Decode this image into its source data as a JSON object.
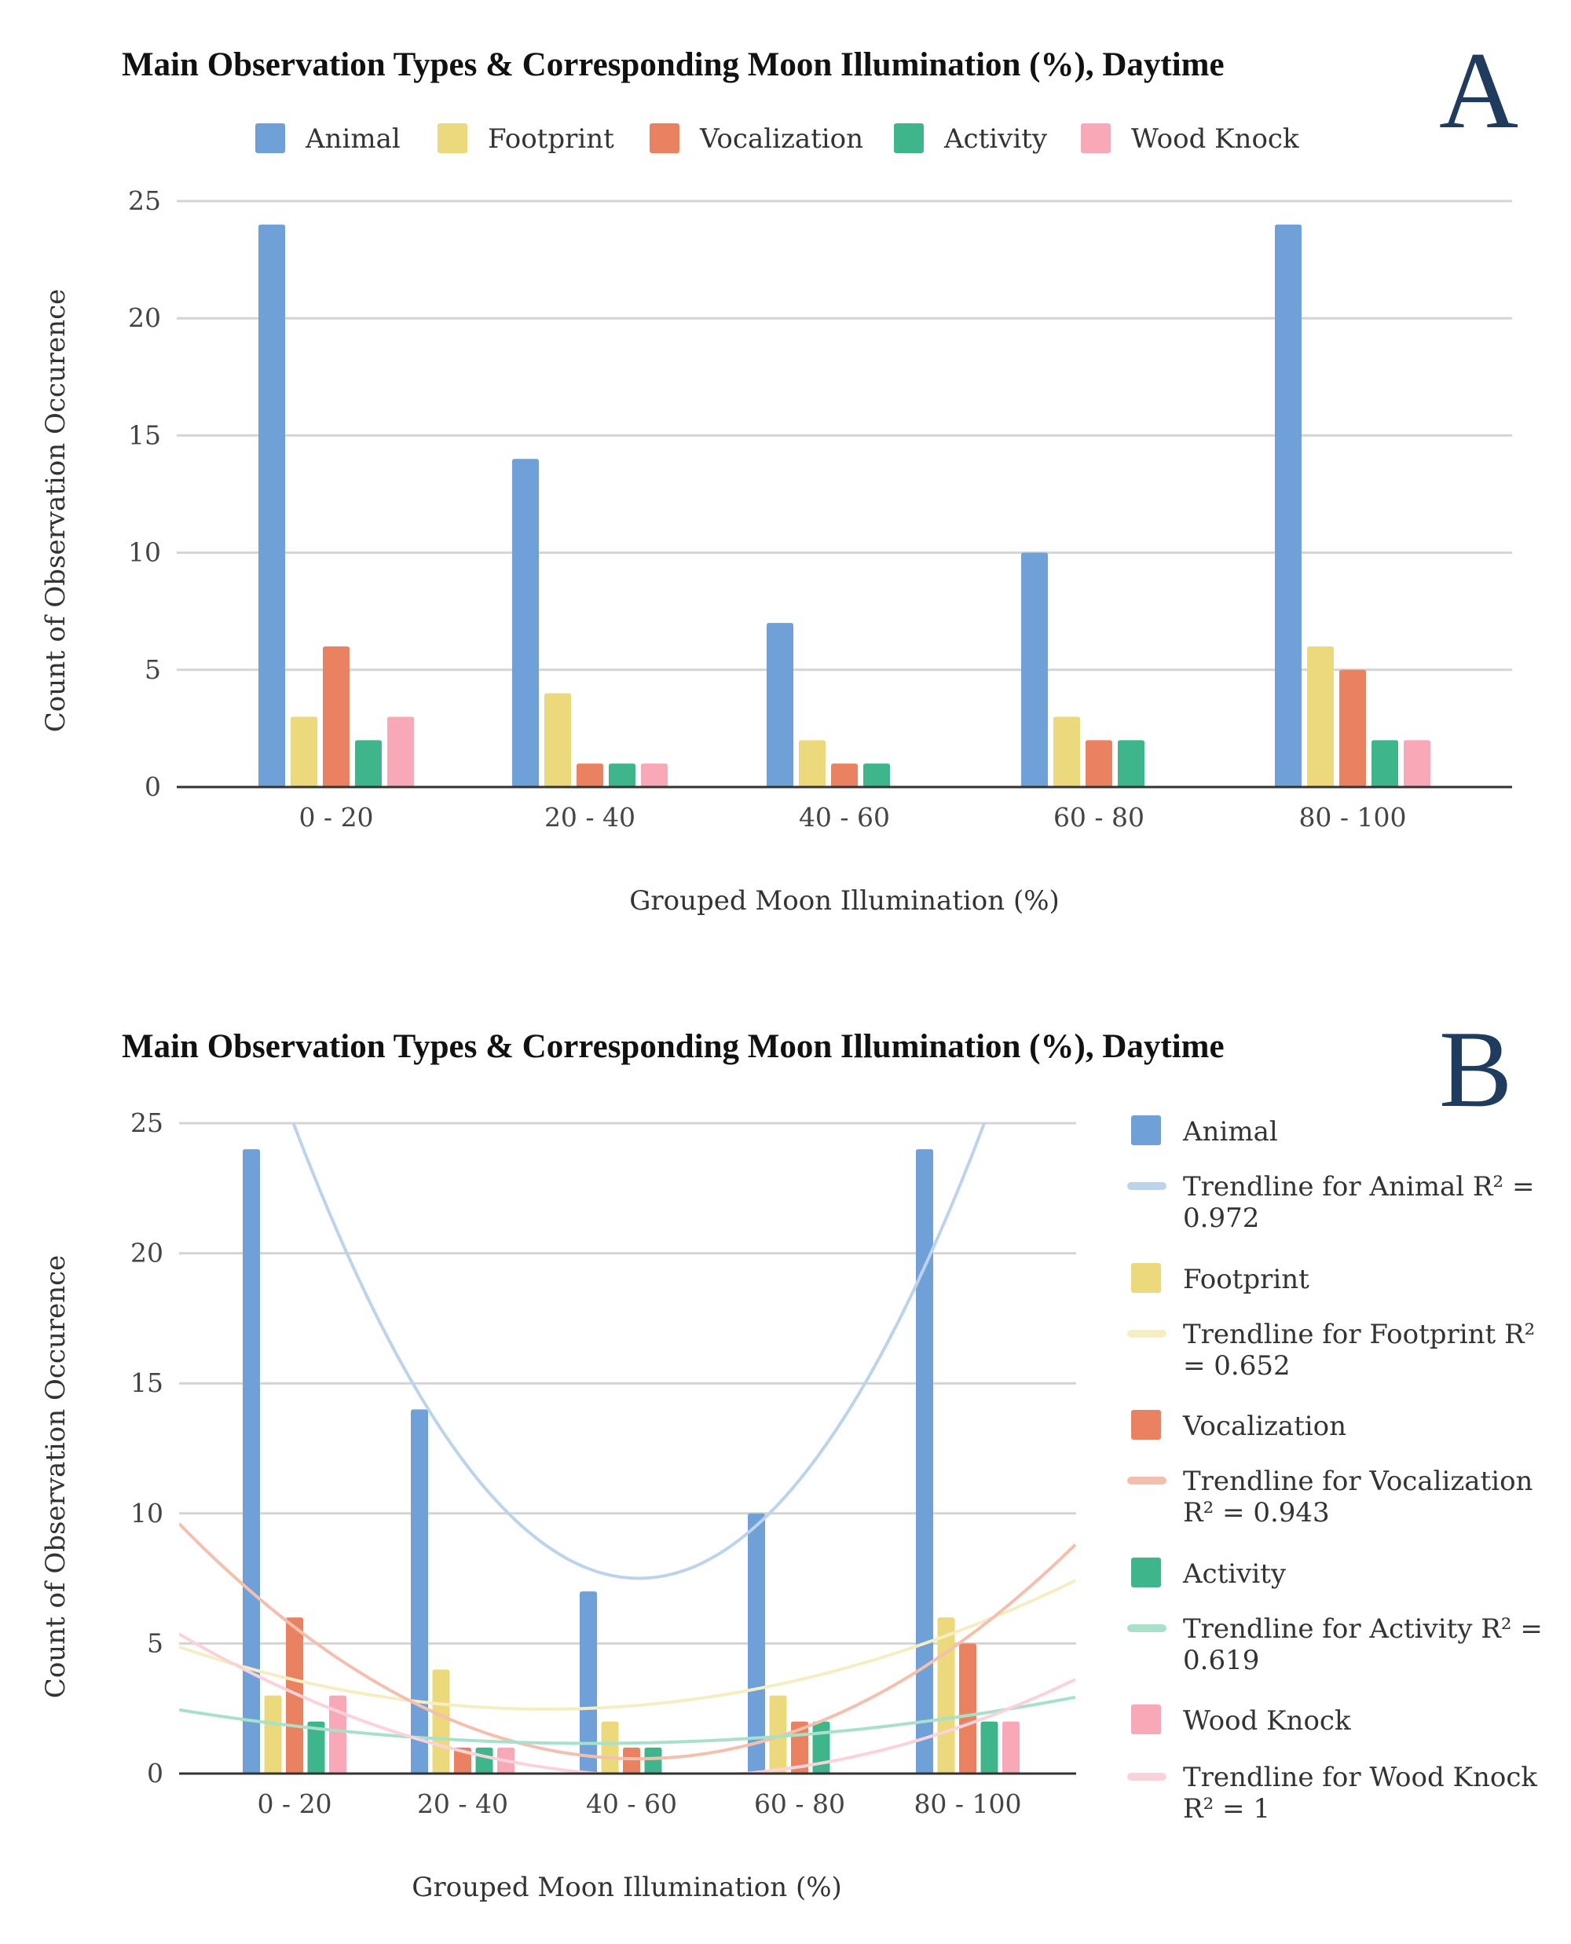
{
  "chart_data": [
    {
      "panel": "A",
      "type": "bar",
      "title": "Main Observation Types & Corresponding Moon Illumination (%), Daytime",
      "xlabel": "Grouped Moon Illumination (%)",
      "ylabel": "Count of Observation Occurence",
      "ylim": [
        0,
        25
      ],
      "yticks": [
        "0",
        "5",
        "10",
        "15",
        "20",
        "25"
      ],
      "categories": [
        "0 - 20",
        "20 - 40",
        "40 - 60",
        "60 - 80",
        "80 - 100"
      ],
      "legend_position": "top",
      "series": [
        {
          "name": "Animal",
          "color": "#6fa0d8",
          "values": [
            24,
            14,
            7,
            10,
            24
          ]
        },
        {
          "name": "Footprint",
          "color": "#ecd97c",
          "values": [
            3,
            4,
            2,
            3,
            6
          ]
        },
        {
          "name": "Vocalization",
          "color": "#ea8261",
          "values": [
            6,
            1,
            1,
            2,
            5
          ]
        },
        {
          "name": "Activity",
          "color": "#3fb58c",
          "values": [
            2,
            1,
            1,
            2,
            2
          ]
        },
        {
          "name": "Wood Knock",
          "color": "#f8a8b6",
          "values": [
            3,
            1,
            0,
            0,
            2
          ]
        }
      ]
    },
    {
      "panel": "B",
      "type": "bar",
      "title": "Main Observation Types & Corresponding Moon Illumination (%), Daytime",
      "xlabel": "Grouped Moon Illumination (%)",
      "ylabel": "Count of Observation Occurence",
      "ylim": [
        0,
        25
      ],
      "yticks": [
        "0",
        "5",
        "10",
        "15",
        "20",
        "25"
      ],
      "categories": [
        "0 - 20",
        "20 - 40",
        "40 - 60",
        "60 - 80",
        "80 - 100"
      ],
      "legend_position": "right",
      "series": [
        {
          "name": "Animal",
          "color": "#6fa0d8",
          "trend_color": "#bcd3ee",
          "values": [
            24,
            14,
            7,
            10,
            24
          ],
          "trendline": "Trendline for Animal R² = 0.972"
        },
        {
          "name": "Footprint",
          "color": "#ecd97c",
          "trend_color": "#f6eec2",
          "values": [
            3,
            4,
            2,
            3,
            6
          ],
          "trendline": "Trendline for Footprint R² = 0.652"
        },
        {
          "name": "Vocalization",
          "color": "#ea8261",
          "trend_color": "#f4c0ad",
          "values": [
            6,
            1,
            1,
            2,
            5
          ],
          "trendline": "Trendline for Vocalization R² = 0.943"
        },
        {
          "name": "Activity",
          "color": "#3fb58c",
          "trend_color": "#a8e0c9",
          "values": [
            2,
            1,
            1,
            2,
            2
          ],
          "trendline": "Trendline for Activity R² = 0.619"
        },
        {
          "name": "Wood Knock",
          "color": "#f8a8b6",
          "trend_color": "#fcd2da",
          "values": [
            3,
            1,
            0,
            0,
            2
          ],
          "trendline": "Trendline for Wood Knock R² = 1"
        }
      ]
    }
  ],
  "figure": {
    "panel_a_letter": "A",
    "panel_b_letter": "B"
  }
}
